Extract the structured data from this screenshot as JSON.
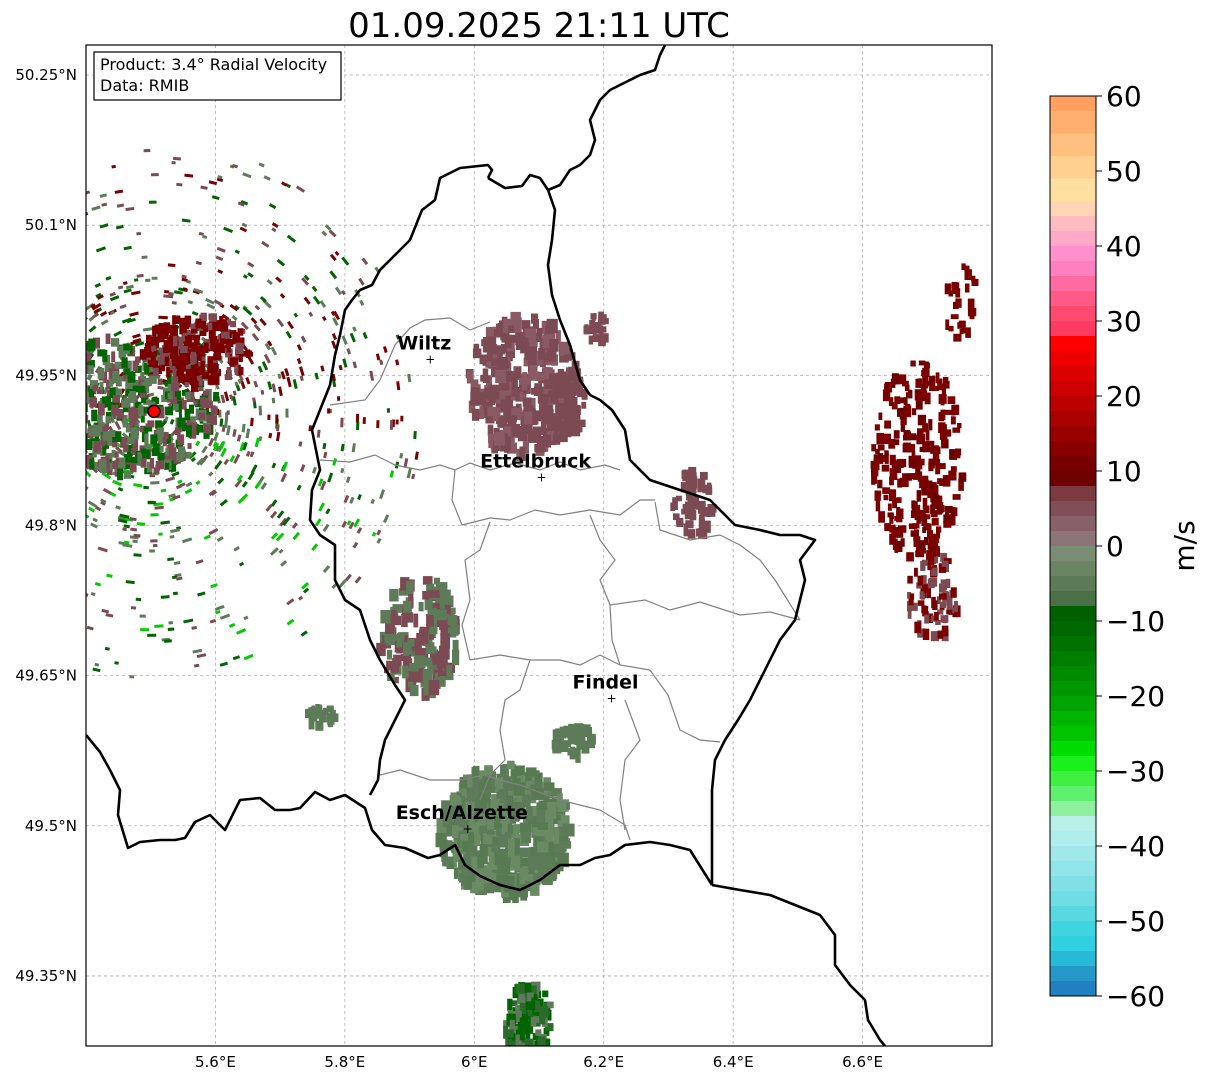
{
  "title": "01.09.2025 21:11 UTC",
  "info_box": {
    "product_line": "Product: 3.4° Radial Velocity",
    "data_line": "Data: RMIB"
  },
  "map": {
    "lon_range": [
      5.4,
      6.8
    ],
    "lat_range": [
      49.28,
      50.28
    ],
    "x_ticks": [
      {
        "value": 5.6,
        "label": "5.6°E"
      },
      {
        "value": 5.8,
        "label": "5.8°E"
      },
      {
        "value": 6.0,
        "label": "6°E"
      },
      {
        "value": 6.2,
        "label": "6.2°E"
      },
      {
        "value": 6.4,
        "label": "6.4°E"
      },
      {
        "value": 6.6,
        "label": "6.6°E"
      }
    ],
    "y_ticks": [
      {
        "value": 50.25,
        "label": "50.25°N"
      },
      {
        "value": 50.1,
        "label": "50.1°N"
      },
      {
        "value": 49.95,
        "label": "49.95°N"
      },
      {
        "value": 49.8,
        "label": "49.8°N"
      },
      {
        "value": 49.65,
        "label": "49.65°N"
      },
      {
        "value": 49.5,
        "label": "49.5°N"
      },
      {
        "value": 49.35,
        "label": "49.35°N"
      }
    ],
    "grid": "dashed",
    "radar_site": {
      "lon": 5.505,
      "lat": 49.914
    },
    "cities": [
      {
        "name": "Wiltz",
        "lon": 5.932,
        "lat": 49.966
      },
      {
        "name": "Ettelbruck",
        "lon": 6.104,
        "lat": 49.848
      },
      {
        "name": "Findel",
        "lon": 6.212,
        "lat": 49.627
      },
      {
        "name": "Esch/Alzette",
        "lon": 5.99,
        "lat": 49.497
      }
    ],
    "colors": {
      "dark_red": "#7a0000",
      "muted_red": "#7c4a52",
      "muted_green": "#5d7b58",
      "dark_green": "#006400",
      "bright_green": "#00cc00"
    }
  },
  "colorbar": {
    "label": "m/s",
    "min": -60,
    "max": 60,
    "ticks": [
      {
        "value": 60,
        "label": "60"
      },
      {
        "value": 50,
        "label": "50"
      },
      {
        "value": 40,
        "label": "40"
      },
      {
        "value": 30,
        "label": "30"
      },
      {
        "value": 20,
        "label": "20"
      },
      {
        "value": 10,
        "label": "10"
      },
      {
        "value": 0,
        "label": "0"
      },
      {
        "value": -10,
        "label": "−10"
      },
      {
        "value": -20,
        "label": "−20"
      },
      {
        "value": -30,
        "label": "−30"
      },
      {
        "value": -40,
        "label": "−40"
      },
      {
        "value": -50,
        "label": "−50"
      },
      {
        "value": -60,
        "label": "−60"
      }
    ],
    "segments": [
      {
        "from": 58,
        "to": 60,
        "color": "#ffa060"
      },
      {
        "from": 55,
        "to": 58,
        "color": "#ffb070"
      },
      {
        "from": 52,
        "to": 55,
        "color": "#ffc080"
      },
      {
        "from": 49,
        "to": 52,
        "color": "#ffd090"
      },
      {
        "from": 46,
        "to": 49,
        "color": "#ffe0a0"
      },
      {
        "from": 44,
        "to": 46,
        "color": "#ffd5b5"
      },
      {
        "from": 42,
        "to": 44,
        "color": "#ffbcc0"
      },
      {
        "from": 40,
        "to": 42,
        "color": "#ffa8c8"
      },
      {
        "from": 38,
        "to": 40,
        "color": "#ff90cc"
      },
      {
        "from": 36,
        "to": 38,
        "color": "#ff80c0"
      },
      {
        "from": 34,
        "to": 36,
        "color": "#ff6aa0"
      },
      {
        "from": 32,
        "to": 34,
        "color": "#ff5a85"
      },
      {
        "from": 30,
        "to": 32,
        "color": "#ff4a70"
      },
      {
        "from": 28,
        "to": 30,
        "color": "#ff3a60"
      },
      {
        "from": 26,
        "to": 28,
        "color": "#ff0000"
      },
      {
        "from": 24,
        "to": 26,
        "color": "#ee0000"
      },
      {
        "from": 22,
        "to": 24,
        "color": "#dd0000"
      },
      {
        "from": 20,
        "to": 22,
        "color": "#cc0000"
      },
      {
        "from": 18,
        "to": 20,
        "color": "#bb0000"
      },
      {
        "from": 16,
        "to": 18,
        "color": "#aa0000"
      },
      {
        "from": 14,
        "to": 16,
        "color": "#990000"
      },
      {
        "from": 12,
        "to": 14,
        "color": "#880000"
      },
      {
        "from": 10,
        "to": 12,
        "color": "#770000"
      },
      {
        "from": 8,
        "to": 10,
        "color": "#6e0000"
      },
      {
        "from": 6,
        "to": 8,
        "color": "#7a3a40"
      },
      {
        "from": 4,
        "to": 6,
        "color": "#7f4e58"
      },
      {
        "from": 2,
        "to": 4,
        "color": "#886068"
      },
      {
        "from": 0,
        "to": 2,
        "color": "#8c7478"
      },
      {
        "from": -2,
        "to": 0,
        "color": "#7a8c74"
      },
      {
        "from": -4,
        "to": -2,
        "color": "#6a8464"
      },
      {
        "from": -6,
        "to": -4,
        "color": "#5c7a56"
      },
      {
        "from": -8,
        "to": -6,
        "color": "#4c7046"
      },
      {
        "from": -10,
        "to": -8,
        "color": "#006000"
      },
      {
        "from": -12,
        "to": -10,
        "color": "#006800"
      },
      {
        "from": -14,
        "to": -12,
        "color": "#007200"
      },
      {
        "from": -16,
        "to": -14,
        "color": "#007e00"
      },
      {
        "from": -18,
        "to": -16,
        "color": "#008a00"
      },
      {
        "from": -20,
        "to": -18,
        "color": "#009600"
      },
      {
        "from": -22,
        "to": -20,
        "color": "#00a400"
      },
      {
        "from": -24,
        "to": -22,
        "color": "#00b400"
      },
      {
        "from": -26,
        "to": -24,
        "color": "#00c400"
      },
      {
        "from": -28,
        "to": -26,
        "color": "#00dc00"
      },
      {
        "from": -30,
        "to": -28,
        "color": "#1cf01c"
      },
      {
        "from": -32,
        "to": -30,
        "color": "#40f040"
      },
      {
        "from": -34,
        "to": -32,
        "color": "#60f070"
      },
      {
        "from": -36,
        "to": -34,
        "color": "#90f0a0"
      },
      {
        "from": -38,
        "to": -36,
        "color": "#b8f0e8"
      },
      {
        "from": -40,
        "to": -38,
        "color": "#b0eeee"
      },
      {
        "from": -42,
        "to": -40,
        "color": "#a0e8ec"
      },
      {
        "from": -44,
        "to": -42,
        "color": "#90e4ea"
      },
      {
        "from": -46,
        "to": -44,
        "color": "#80e0e6"
      },
      {
        "from": -48,
        "to": -46,
        "color": "#70dce4"
      },
      {
        "from": -50,
        "to": -48,
        "color": "#58d8e0"
      },
      {
        "from": -52,
        "to": -50,
        "color": "#40d4de"
      },
      {
        "from": -54,
        "to": -52,
        "color": "#30d0e0"
      },
      {
        "from": -56,
        "to": -54,
        "color": "#28b8d8"
      },
      {
        "from": -58,
        "to": -56,
        "color": "#2498c8"
      },
      {
        "from": -60,
        "to": -58,
        "color": "#2080c0"
      }
    ]
  }
}
